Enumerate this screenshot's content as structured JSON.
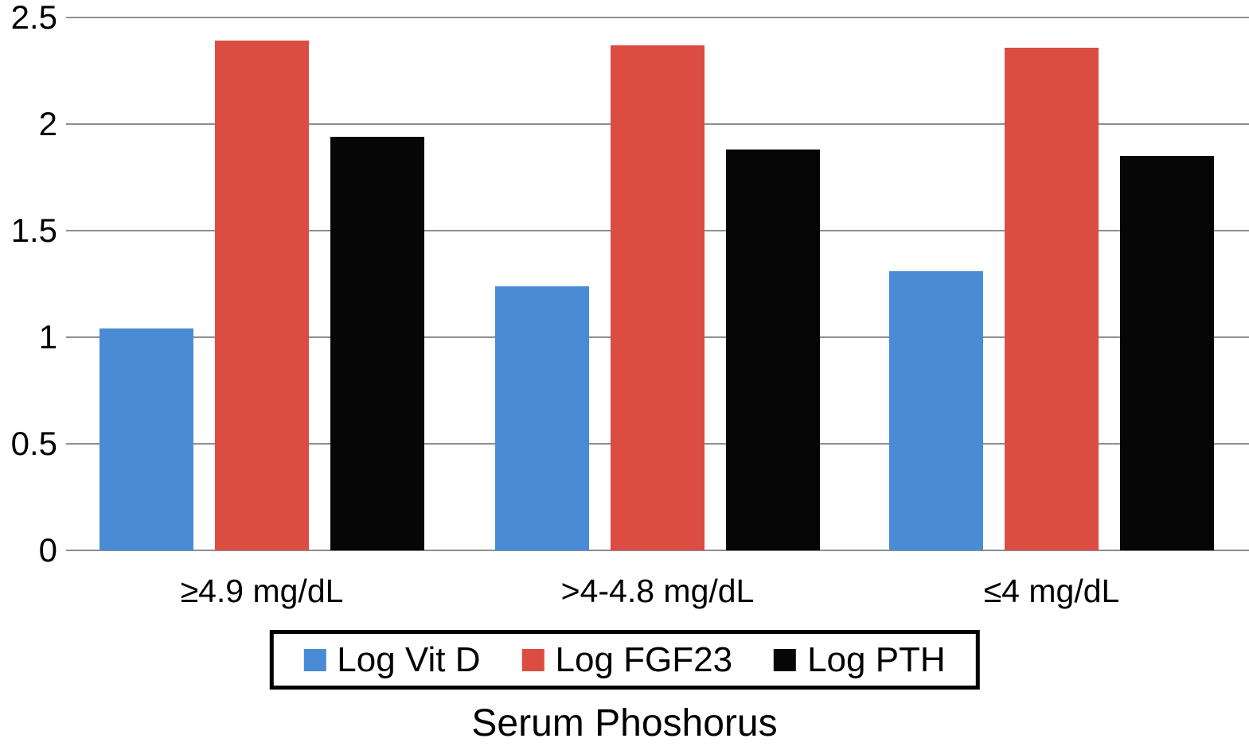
{
  "chart_data": {
    "type": "bar",
    "title": "",
    "xlabel": "Serum Phoshorus",
    "ylabel": "",
    "categories": [
      "≥4.9 mg/dL",
      ">4-4.8 mg/dL",
      "≤4 mg/dL"
    ],
    "series": [
      {
        "name": "Log Vit D",
        "color": "#4A8BD5",
        "values": [
          1.04,
          1.24,
          1.31
        ]
      },
      {
        "name": "Log FGF23",
        "color": "#DB4C43",
        "values": [
          2.39,
          2.37,
          2.36
        ]
      },
      {
        "name": "Log PTH",
        "color": "#060606",
        "values": [
          1.94,
          1.88,
          1.85
        ]
      }
    ],
    "y_ticks": [
      "2.5",
      "2",
      "1.5",
      "1",
      "0.5",
      "0"
    ],
    "y_tick_values": [
      2.5,
      2,
      1.5,
      1,
      0.5,
      0
    ],
    "ylim": [
      0,
      2.5
    ],
    "grid": true,
    "gridline_color": "#8F8F8F",
    "legend_position": "bottom",
    "background_color": "#FFFFFF",
    "text_color": "#000000"
  }
}
